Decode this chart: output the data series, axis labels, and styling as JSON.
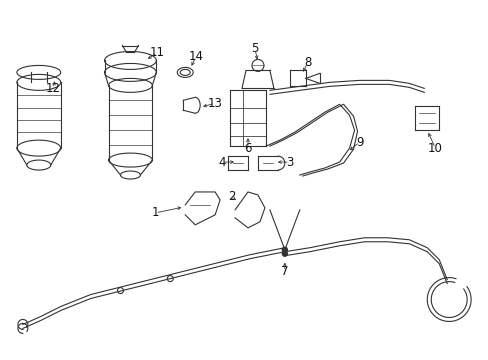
{
  "bg_color": "#ffffff",
  "line_color": "#333333",
  "label_color": "#111111",
  "fig_width": 4.89,
  "fig_height": 3.6,
  "dpi": 100
}
